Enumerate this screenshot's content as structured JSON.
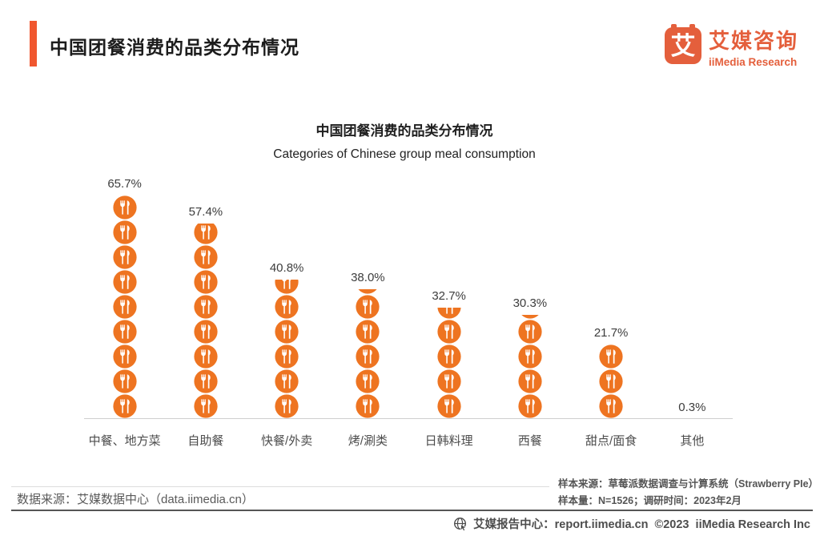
{
  "page": {
    "header": {
      "title": "中国团餐消费的品类分布情况",
      "logo_glyph": "艾",
      "logo_cn": "艾媒咨询",
      "logo_en": "iiMedia Research"
    },
    "chart": {
      "title": "中国团餐消费的品类分布情况",
      "subtitle": "Categories of Chinese group meal consumption"
    },
    "source_left": "数据来源：艾媒数据中心（data.iimedia.cn）",
    "sample_source": "样本来源：草莓派数据调查与计算系统（Strawberry PIe）",
    "sample_size": "样本量：N=1526；调研时间：2023年2月",
    "footer": "艾媒报告中心：report.iimedia.cn  ©2023  iiMedia Research Inc"
  },
  "colors": {
    "accent_orange": "#F0572F",
    "logo_orange": "#E45F3C",
    "icon_orange": "#EE7421",
    "axis_gray": "#cfcfcf",
    "text_dark": "#1c1c1c",
    "text_gray": "#555555"
  },
  "chart_data": {
    "type": "bar",
    "style": "pictogram column chart; stacked fork-and-knife circle icons, one icon ≈ 7.3%, partial value clipped at top of stack",
    "title": "中国团餐消费的品类分布情况",
    "subtitle": "Categories of Chinese group meal consumption",
    "xlabel": "",
    "ylabel": "",
    "ylim": [
      0,
      70
    ],
    "grid": false,
    "legend": false,
    "icon": "fork-knife-icon",
    "icon_color": "#EE7421",
    "unit_percent_per_icon": 7.3,
    "categories": [
      "中餐、地方菜",
      "自助餐",
      "快餐/外卖",
      "烤/涮类",
      "日韩料理",
      "西餐",
      "甜点/面食",
      "其他"
    ],
    "values": [
      65.7,
      57.4,
      40.8,
      38.0,
      32.7,
      30.3,
      21.7,
      0.3
    ],
    "value_labels": [
      "65.7%",
      "57.4%",
      "40.8%",
      "38.0%",
      "32.7%",
      "30.3%",
      "21.7%",
      "0.3%"
    ]
  }
}
